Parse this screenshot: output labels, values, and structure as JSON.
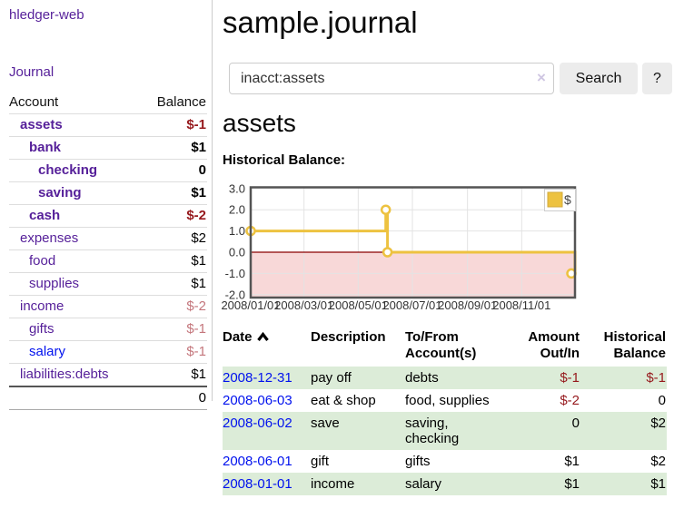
{
  "app": {
    "title": "hledger-web"
  },
  "sidebar": {
    "journal_label": "Journal",
    "accounts_table": {
      "headers": {
        "account": "Account",
        "balance": "Balance"
      },
      "rows": [
        {
          "name": "assets",
          "balance": "$-1"
        },
        {
          "name": "bank",
          "balance": "$1"
        },
        {
          "name": "checking",
          "balance": "0"
        },
        {
          "name": "saving",
          "balance": "$1"
        },
        {
          "name": "cash",
          "balance": "$-2"
        },
        {
          "name": "expenses",
          "balance": "$2"
        },
        {
          "name": "food",
          "balance": "$1"
        },
        {
          "name": "supplies",
          "balance": "$1"
        },
        {
          "name": "income",
          "balance": "$-2"
        },
        {
          "name": "gifts",
          "balance": "$-1"
        },
        {
          "name": "salary",
          "balance": "$-1"
        },
        {
          "name": "liabilities:debts",
          "balance": "$1"
        }
      ],
      "total": "0"
    }
  },
  "main": {
    "title": "sample.journal",
    "search": {
      "value": "inacct:assets",
      "clear_icon": "×",
      "button_label": "Search",
      "help_label": "?"
    },
    "account_heading": "assets",
    "chart_label": "Historical Balance:",
    "register": {
      "headers": {
        "date": "Date",
        "description": "Description",
        "accounts": "To/From Account(s)",
        "amount": "Amount Out/In",
        "balance": "Historical Balance"
      },
      "rows": [
        {
          "date": "2008-12-31",
          "description": "pay off",
          "accounts": "debts",
          "amount": "$-1",
          "balance": "$-1"
        },
        {
          "date": "2008-06-03",
          "description": "eat & shop",
          "accounts": "food, supplies",
          "amount": "$-2",
          "balance": "0"
        },
        {
          "date": "2008-06-02",
          "description": "save",
          "accounts": "saving, checking",
          "amount": "0",
          "balance": "$2"
        },
        {
          "date": "2008-06-01",
          "description": "gift",
          "accounts": "gifts",
          "amount": "$1",
          "balance": "$2"
        },
        {
          "date": "2008-01-01",
          "description": "income",
          "accounts": "salary",
          "amount": "$1",
          "balance": "$1"
        }
      ]
    }
  },
  "colors": {
    "link_purple": "#551f99",
    "link_blue": "#0011ee",
    "negative_strong": "#96191d",
    "negative_soft": "#c4767c",
    "row_green": "#dcecd8",
    "chart_gold": "#edc240"
  },
  "chart_data": {
    "type": "line",
    "step": true,
    "title": "Historical Balance:",
    "x_start": "2008-01-01",
    "x_end": "2008-12-31",
    "ylim": [
      -2,
      3
    ],
    "yticks": [
      "3.0",
      "2.0",
      "1.0",
      "0.0",
      "-1.0",
      "-2.0"
    ],
    "xticks": [
      "2008/01/01",
      "2008/03/01",
      "2008/05/01",
      "2008/07/01",
      "2008/09/01",
      "2008/11/01"
    ],
    "grid": true,
    "legend": {
      "label": "$",
      "position": "top-right"
    },
    "negative_region_color": "#f8d8d8",
    "zero_line_color": "#8b0000",
    "series": [
      {
        "name": "$",
        "color": "#edc240",
        "points": [
          [
            "2008-01-01",
            1
          ],
          [
            "2008-06-01",
            2
          ],
          [
            "2008-06-03",
            0
          ],
          [
            "2008-12-31",
            -1
          ]
        ]
      }
    ]
  }
}
